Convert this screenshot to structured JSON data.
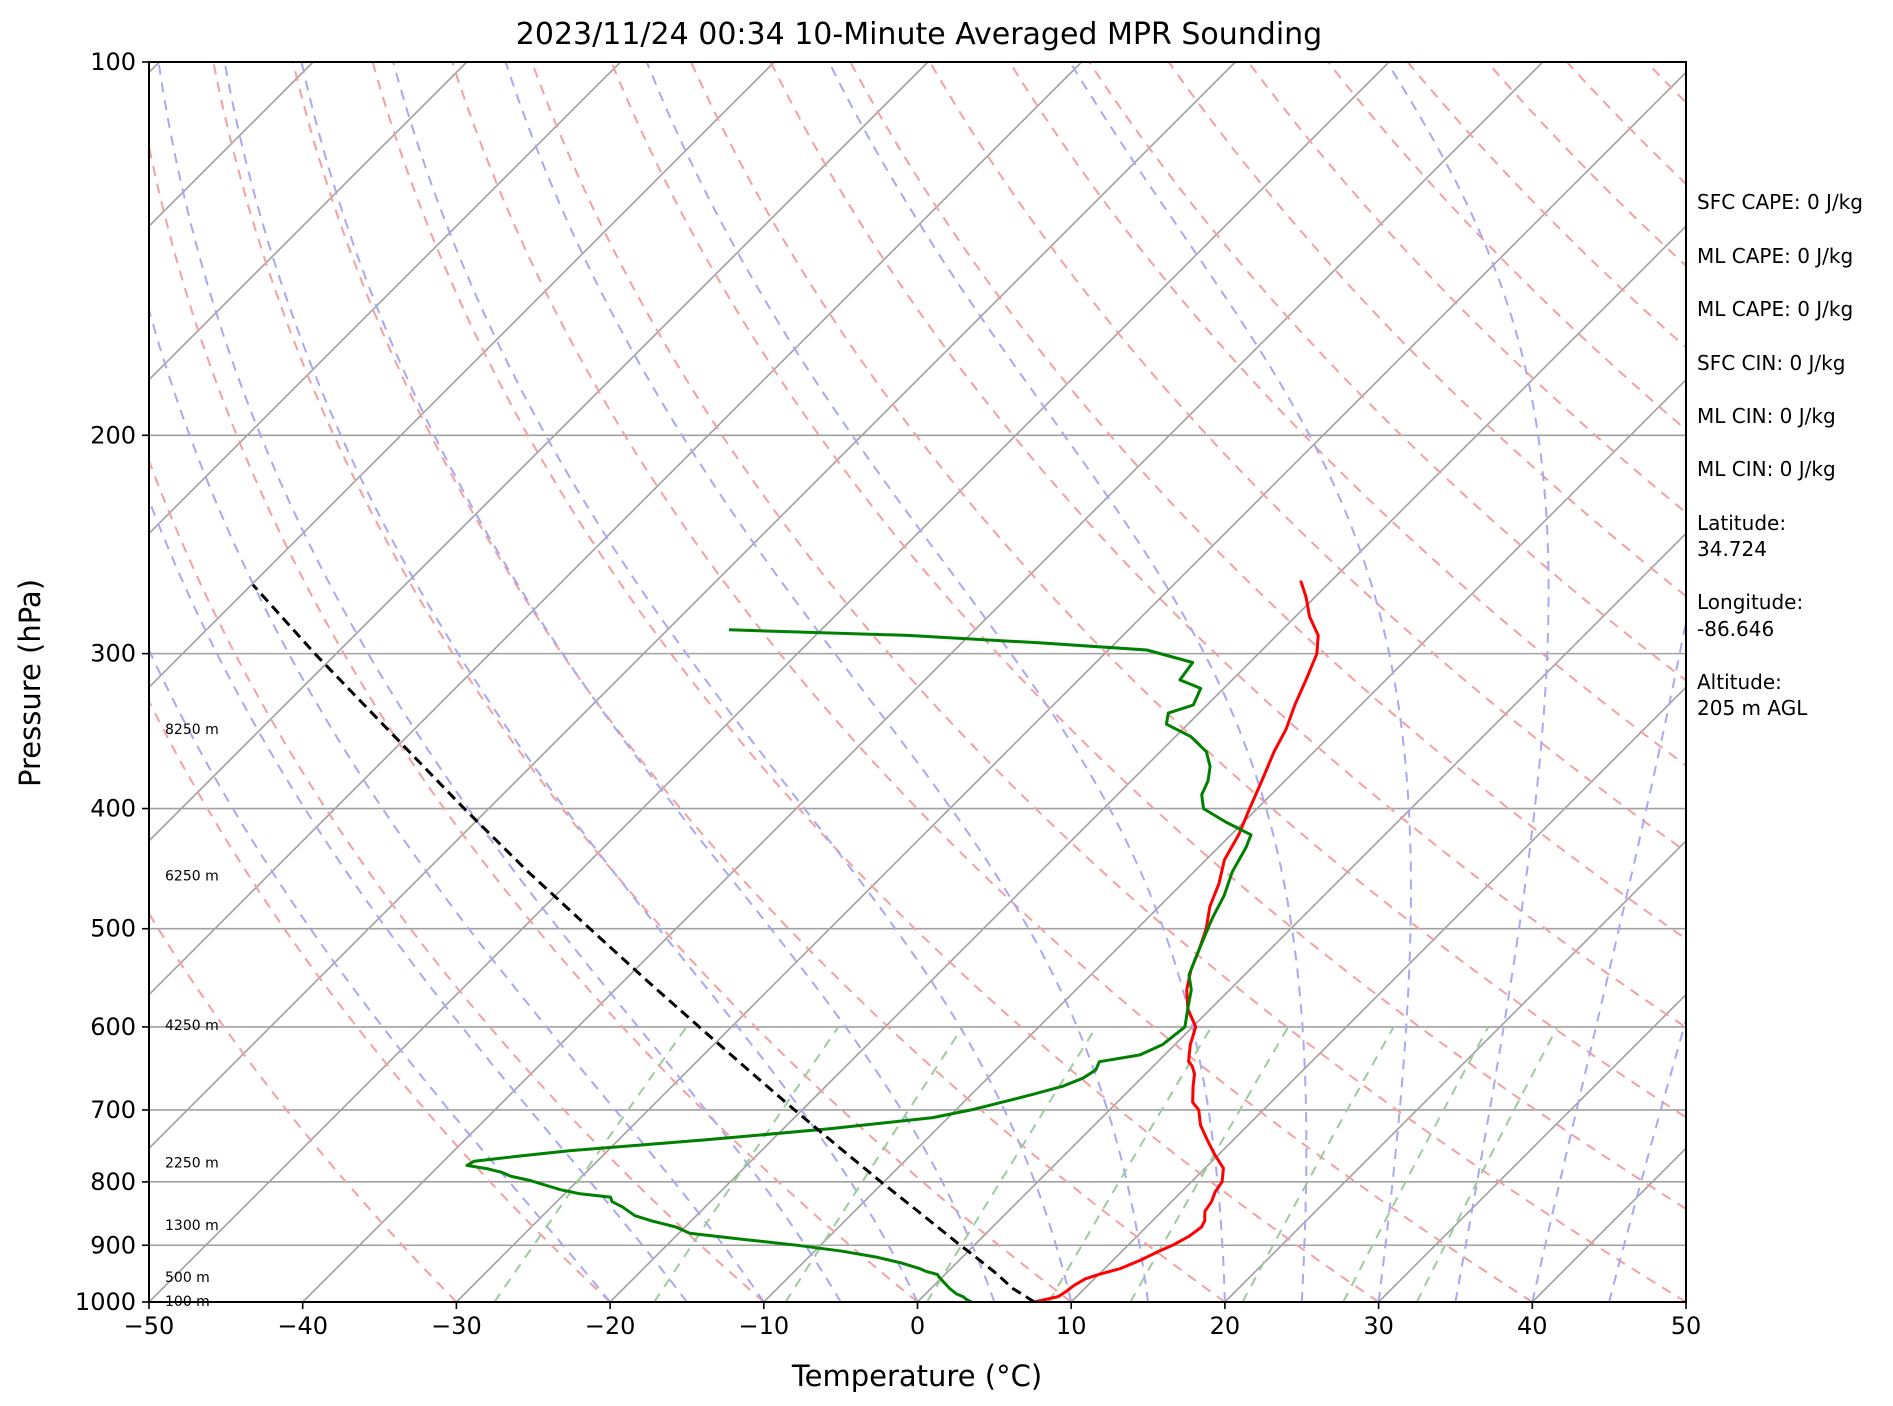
{
  "chart_data": {
    "type": "line",
    "subtype": "skew-T log-P sounding",
    "title": "2023/11/24 00:34 10-Minute Averaged MPR Sounding",
    "xlabel": "Temperature (°C)",
    "ylabel": "Pressure (hPa)",
    "xlim": [
      -50,
      50
    ],
    "ylim": [
      1000,
      100
    ],
    "y_scale": "log",
    "x_ticks": [
      "−50",
      "−40",
      "−30",
      "−20",
      "−10",
      "0",
      "10",
      "20",
      "30",
      "40",
      "50"
    ],
    "x_tick_values": [
      -50,
      -40,
      -30,
      -20,
      -10,
      0,
      10,
      20,
      30,
      40,
      50
    ],
    "y_ticks": [
      "100",
      "200",
      "300",
      "400",
      "500",
      "600",
      "700",
      "800",
      "900",
      "1000"
    ],
    "y_tick_values": [
      100,
      200,
      300,
      400,
      500,
      600,
      700,
      800,
      900,
      1000
    ],
    "grid": true,
    "isotherms_step": 10,
    "colors": {
      "temperature": "#ff0000",
      "dewpoint": "#008000",
      "parcel": "#000000",
      "dry_adiabats": "#f4a0a0",
      "moist_adiabats": "#a8a8f4",
      "mixing_ratio": "#9ccc9c",
      "isotherms": "#a0a0a0",
      "isobars": "#a0a0a0"
    },
    "series": [
      {
        "key": "temperature",
        "points": [
          [
            1000,
            7.6
          ],
          [
            990,
            8.8
          ],
          [
            980,
            9.0
          ],
          [
            970,
            9.1
          ],
          [
            958,
            9.4
          ],
          [
            950,
            10.0
          ],
          [
            940,
            11.0
          ],
          [
            925,
            11.8
          ],
          [
            910,
            12.4
          ],
          [
            900,
            12.9
          ],
          [
            885,
            13.4
          ],
          [
            870,
            13.6
          ],
          [
            860,
            13.4
          ],
          [
            845,
            12.8
          ],
          [
            830,
            12.6
          ],
          [
            815,
            12.2
          ],
          [
            800,
            12.0
          ],
          [
            780,
            11.2
          ],
          [
            760,
            9.7
          ],
          [
            740,
            8.3
          ],
          [
            720,
            6.9
          ],
          [
            700,
            5.8
          ],
          [
            690,
            4.9
          ],
          [
            670,
            3.9
          ],
          [
            655,
            3.2
          ],
          [
            645,
            2.5
          ],
          [
            640,
            2.0
          ],
          [
            632,
            1.6
          ],
          [
            620,
            1.0
          ],
          [
            600,
            0.2
          ],
          [
            580,
            -1.5
          ],
          [
            560,
            -2.8
          ],
          [
            540,
            -3.8
          ],
          [
            520,
            -4.6
          ],
          [
            500,
            -5.5
          ],
          [
            480,
            -6.7
          ],
          [
            460,
            -7.6
          ],
          [
            440,
            -8.8
          ],
          [
            420,
            -9.5
          ],
          [
            400,
            -10.5
          ],
          [
            380,
            -11.5
          ],
          [
            360,
            -12.6
          ],
          [
            345,
            -13.3
          ],
          [
            330,
            -14.3
          ],
          [
            315,
            -15.2
          ],
          [
            300,
            -16.2
          ],
          [
            290,
            -17.3
          ],
          [
            280,
            -19.1
          ],
          [
            270,
            -20.6
          ],
          [
            262,
            -22.0
          ]
        ]
      },
      {
        "key": "dewpoint",
        "points": [
          [
            1000,
            3.5
          ],
          [
            995,
            3.0
          ],
          [
            990,
            2.6
          ],
          [
            985,
            2.0
          ],
          [
            980,
            1.6
          ],
          [
            975,
            1.2
          ],
          [
            965,
            0.5
          ],
          [
            955,
            -0.2
          ],
          [
            950,
            -0.5
          ],
          [
            945,
            -1.4
          ],
          [
            940,
            -2.0
          ],
          [
            930,
            -3.6
          ],
          [
            920,
            -5.6
          ],
          [
            910,
            -8.2
          ],
          [
            900,
            -11.5
          ],
          [
            890,
            -15.5
          ],
          [
            880,
            -19.3
          ],
          [
            870,
            -20.6
          ],
          [
            860,
            -22.6
          ],
          [
            852,
            -24.0
          ],
          [
            845,
            -24.7
          ],
          [
            838,
            -25.4
          ],
          [
            830,
            -26.4
          ],
          [
            823,
            -26.8
          ],
          [
            818,
            -29.0
          ],
          [
            812,
            -30.5
          ],
          [
            805,
            -31.8
          ],
          [
            798,
            -33.1
          ],
          [
            792,
            -34.6
          ],
          [
            786,
            -35.5
          ],
          [
            781,
            -36.6
          ],
          [
            776,
            -38.2
          ],
          [
            770,
            -38.0
          ],
          [
            763,
            -35.5
          ],
          [
            755,
            -32.5
          ],
          [
            740,
            -24.3
          ],
          [
            725,
            -17.0
          ],
          [
            710,
            -11.0
          ],
          [
            700,
            -9.0
          ],
          [
            690,
            -7.5
          ],
          [
            680,
            -6.0
          ],
          [
            670,
            -4.6
          ],
          [
            660,
            -3.8
          ],
          [
            650,
            -3.5
          ],
          [
            640,
            -3.8
          ],
          [
            632,
            -1.6
          ],
          [
            620,
            -0.8
          ],
          [
            600,
            -0.5
          ],
          [
            580,
            -1.5
          ],
          [
            560,
            -2.5
          ],
          [
            545,
            -3.6
          ],
          [
            530,
            -4.2
          ],
          [
            510,
            -5.0
          ],
          [
            490,
            -5.8
          ],
          [
            470,
            -6.5
          ],
          [
            450,
            -7.5
          ],
          [
            430,
            -8.2
          ],
          [
            420,
            -8.7
          ],
          [
            410,
            -11.2
          ],
          [
            400,
            -13.5
          ],
          [
            390,
            -14.5
          ],
          [
            380,
            -15.0
          ],
          [
            370,
            -15.8
          ],
          [
            360,
            -17.0
          ],
          [
            350,
            -19.0
          ],
          [
            342,
            -21.4
          ],
          [
            335,
            -22.0
          ],
          [
            330,
            -20.9
          ],
          [
            320,
            -21.5
          ],
          [
            315,
            -23.4
          ],
          [
            305,
            -23.7
          ],
          [
            298,
            -27.5
          ],
          [
            294,
            -35.0
          ],
          [
            290,
            -44.0
          ],
          [
            287,
            -56.0
          ]
        ]
      },
      {
        "key": "parcel",
        "points": [
          [
            1000,
            7.6
          ],
          [
            990,
            6.7
          ],
          [
            975,
            5.3
          ],
          [
            950,
            3.4
          ],
          [
            925,
            1.3
          ],
          [
            900,
            -0.9
          ],
          [
            850,
            -5.4
          ],
          [
            800,
            -10.2
          ],
          [
            750,
            -15.2
          ],
          [
            700,
            -20.5
          ],
          [
            650,
            -26.1
          ],
          [
            600,
            -32.1
          ],
          [
            550,
            -38.6
          ],
          [
            500,
            -45.6
          ],
          [
            450,
            -53.3
          ],
          [
            400,
            -61.6
          ],
          [
            350,
            -70.8
          ],
          [
            300,
            -81.4
          ],
          [
            264,
            -89.9
          ]
        ]
      }
    ],
    "height_labels": [
      "100 m",
      "500 m",
      "1300 m",
      "2250 m",
      "4250 m",
      "6250 m",
      "8250 m"
    ],
    "height_label_pressures": [
      998,
      955,
      867,
      772,
      598,
      453,
      345
    ]
  },
  "info": {
    "sfc_cape": "SFC CAPE: 0 J/kg",
    "ml_cape": "ML CAPE: 0 J/kg",
    "mu_cape": "ML CAPE: 0 J/kg",
    "sfc_cin": "SFC CIN: 0 J/kg",
    "ml_cin": "ML CIN: 0 J/kg",
    "mu_cin": "ML CIN: 0 J/kg",
    "latitude_label": "Latitude:",
    "latitude_value": "34.724",
    "longitude_label": "Longitude:",
    "longitude_value": "-86.646",
    "altitude_label": "Altitude:",
    "altitude_value": "205 m AGL"
  }
}
